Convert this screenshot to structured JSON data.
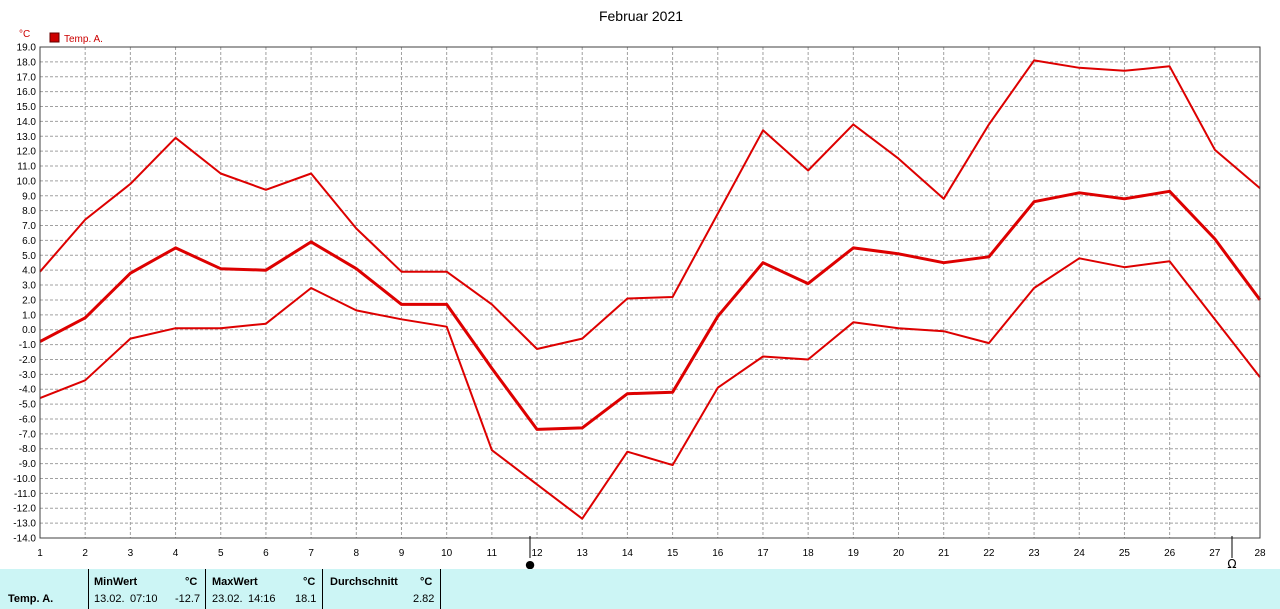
{
  "title": "Februar 2021",
  "unit": "°C",
  "legend": {
    "label": "Temp. A.",
    "color": "#cc0000"
  },
  "chart_data": {
    "type": "line",
    "title": "Februar 2021",
    "ylabel": "°C",
    "ylim": [
      -14.0,
      19.0
    ],
    "ytick_step": 1.0,
    "yticks": [
      "19.0",
      "18.0",
      "17.0",
      "16.0",
      "15.0",
      "14.0",
      "13.0",
      "12.0",
      "11.0",
      "10.0",
      "9.0",
      "8.0",
      "7.0",
      "6.0",
      "5.0",
      "4.0",
      "3.0",
      "2.0",
      "1.0",
      "0.0",
      "-1.0",
      "-2.0",
      "-3.0",
      "-4.0",
      "-5.0",
      "-6.0",
      "-7.0",
      "-8.0",
      "-9.0",
      "-10.0",
      "-11.0",
      "-12.0",
      "-13.0",
      "-14.0"
    ],
    "xlim": [
      1,
      28
    ],
    "x_ticks": [
      "1",
      "2",
      "3",
      "4",
      "5",
      "6",
      "7",
      "8",
      "9",
      "10",
      "11",
      "12",
      "13",
      "14",
      "15",
      "16",
      "17",
      "18",
      "19",
      "20",
      "21",
      "22",
      "23",
      "24",
      "25",
      "26",
      "27",
      "28"
    ],
    "grid": true,
    "legend_position": "top-left",
    "series": [
      {
        "name": "Temp. A.",
        "role": "max",
        "color": "#dd0000",
        "x": [
          1,
          2,
          3,
          4,
          5,
          6,
          7,
          8,
          9,
          10,
          11,
          12,
          13,
          14,
          15,
          16,
          17,
          18,
          19,
          20,
          21,
          22,
          23,
          24,
          25,
          26,
          27,
          28
        ],
        "values": [
          3.9,
          7.4,
          9.8,
          12.9,
          10.5,
          9.4,
          10.5,
          6.8,
          3.9,
          3.9,
          1.7,
          -1.3,
          -0.6,
          2.1,
          2.2,
          7.8,
          13.4,
          10.7,
          13.8,
          11.5,
          8.8,
          13.8,
          18.1,
          17.6,
          17.4,
          17.7,
          12.1,
          9.5
        ]
      },
      {
        "name": "Temp. A.",
        "role": "avg",
        "color": "#dd0000",
        "x": [
          1,
          2,
          3,
          4,
          5,
          6,
          7,
          8,
          9,
          10,
          11,
          12,
          13,
          14,
          15,
          16,
          17,
          18,
          19,
          20,
          21,
          22,
          23,
          24,
          25,
          26,
          27,
          28
        ],
        "values": [
          -0.8,
          0.8,
          3.8,
          5.5,
          4.1,
          4.0,
          5.9,
          4.1,
          1.7,
          1.7,
          -2.6,
          -6.7,
          -6.6,
          -4.3,
          -4.2,
          0.9,
          4.5,
          3.1,
          5.5,
          5.1,
          4.5,
          4.9,
          8.6,
          9.2,
          8.8,
          9.3,
          6.1,
          2.0
        ]
      },
      {
        "name": "Temp. A.",
        "role": "min",
        "color": "#dd0000",
        "x": [
          1,
          2,
          3,
          4,
          5,
          6,
          7,
          8,
          9,
          10,
          11,
          12,
          13,
          14,
          15,
          16,
          17,
          18,
          19,
          20,
          21,
          22,
          23,
          24,
          25,
          26,
          27,
          28
        ],
        "values": [
          -4.6,
          -3.4,
          -0.6,
          0.1,
          0.1,
          0.4,
          2.8,
          1.3,
          0.7,
          0.2,
          -8.1,
          -10.4,
          -12.7,
          -8.2,
          -9.1,
          -3.9,
          -1.8,
          -2.0,
          0.5,
          0.1,
          -0.1,
          -0.9,
          2.8,
          4.8,
          4.2,
          4.6,
          0.7,
          -3.2
        ]
      }
    ]
  },
  "markers": {
    "sun_symbol": "●",
    "moon_symbol": "Ω"
  },
  "stats": {
    "row_label": "Temp. A.",
    "min": {
      "header": "MinWert",
      "unit": "°C",
      "date": "13.02.",
      "time": "07:10",
      "value": "-12.7"
    },
    "max": {
      "header": "MaxWert",
      "unit": "°C",
      "date": "23.02.",
      "time": "14:16",
      "value": "18.1"
    },
    "avg": {
      "header": "Durchschnitt",
      "unit": "°C",
      "value": "2.82"
    }
  }
}
